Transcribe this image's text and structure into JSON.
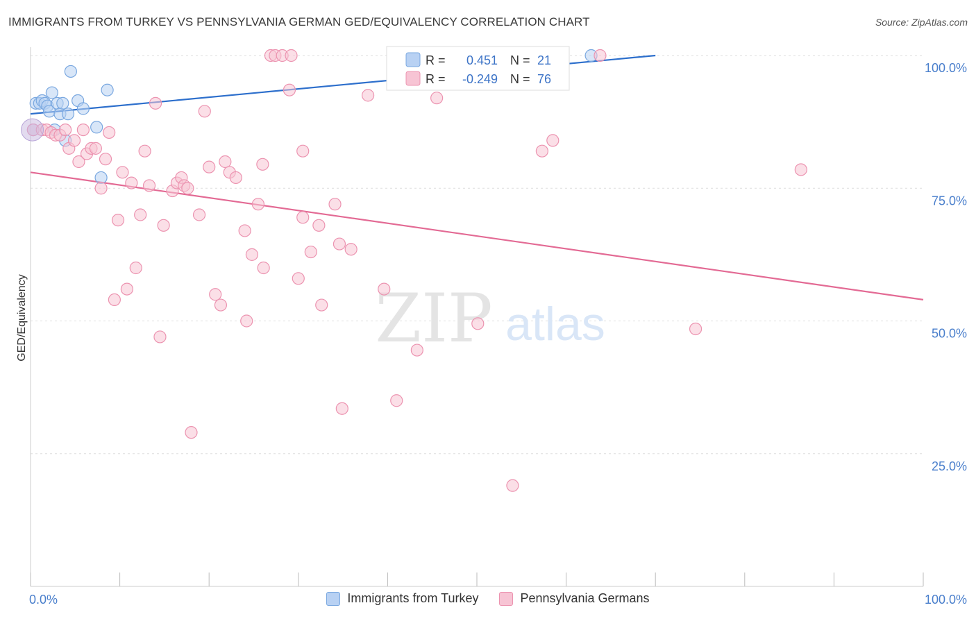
{
  "title": "IMMIGRANTS FROM TURKEY VS PENNSYLVANIA GERMAN GED/EQUIVALENCY CORRELATION CHART",
  "source": "Source: ZipAtlas.com",
  "watermark": {
    "zip": "ZIP",
    "atlas": "atlas"
  },
  "colors": {
    "blue_fill": "#b8d1f3",
    "blue_stroke": "#7aa8e0",
    "blue_line": "#2d6fcc",
    "pink_fill": "#f7c4d4",
    "pink_stroke": "#ec93b0",
    "pink_line": "#e36a94",
    "axis_label": "#4a7fcc",
    "grid": "#dddddd"
  },
  "stats_legend": {
    "rows": [
      {
        "r_label": "R =",
        "r_value": "0.451",
        "n_label": "N =",
        "n_value": "21",
        "series": "blue"
      },
      {
        "r_label": "R =",
        "r_value": "-0.249",
        "n_label": "N =",
        "n_value": "76",
        "series": "pink"
      }
    ]
  },
  "chart_data": {
    "type": "scatter",
    "xlabel": "",
    "ylabel": "GED/Equivalency",
    "xlim": [
      0,
      100
    ],
    "ylim": [
      0,
      100
    ],
    "x_tick_labels": [
      "0.0%",
      "100.0%"
    ],
    "y_tick_labels": [
      {
        "value": 100,
        "label": "100.0%"
      },
      {
        "value": 75,
        "label": "75.0%"
      },
      {
        "value": 50,
        "label": "50.0%"
      },
      {
        "value": 25,
        "label": "25.0%"
      }
    ],
    "grid": true,
    "series": [
      {
        "name": "Immigrants from Turkey",
        "color": "blue",
        "points": [
          [
            0.3,
            86
          ],
          [
            0.6,
            91
          ],
          [
            1.0,
            91
          ],
          [
            1.3,
            91.5
          ],
          [
            1.6,
            91
          ],
          [
            1.9,
            90.5
          ],
          [
            2.1,
            89.5
          ],
          [
            2.4,
            93
          ],
          [
            2.7,
            86
          ],
          [
            3.0,
            91
          ],
          [
            3.3,
            89
          ],
          [
            3.6,
            91
          ],
          [
            3.9,
            84
          ],
          [
            4.2,
            89
          ],
          [
            4.5,
            97
          ],
          [
            5.3,
            91.5
          ],
          [
            5.9,
            90
          ],
          [
            7.4,
            86.5
          ],
          [
            7.9,
            77
          ],
          [
            8.6,
            93.5
          ],
          [
            62.8,
            100
          ]
        ],
        "trend": {
          "x0": 0,
          "y0": 89,
          "x1": 70,
          "y1": 100
        }
      },
      {
        "name": "Pennsylvania Germans",
        "color": "pink",
        "points": [
          [
            0.3,
            86
          ],
          [
            1.3,
            86
          ],
          [
            1.8,
            86
          ],
          [
            2.3,
            85.5
          ],
          [
            2.8,
            85
          ],
          [
            3.3,
            85
          ],
          [
            3.9,
            86
          ],
          [
            4.3,
            82.5
          ],
          [
            4.9,
            84
          ],
          [
            5.4,
            80
          ],
          [
            5.9,
            86
          ],
          [
            6.3,
            81.5
          ],
          [
            6.8,
            82.5
          ],
          [
            7.3,
            82.5
          ],
          [
            7.9,
            75
          ],
          [
            8.4,
            80.5
          ],
          [
            8.8,
            85.5
          ],
          [
            9.4,
            54
          ],
          [
            9.8,
            69
          ],
          [
            10.3,
            78
          ],
          [
            10.8,
            56
          ],
          [
            11.3,
            76
          ],
          [
            11.8,
            60
          ],
          [
            12.3,
            70
          ],
          [
            12.8,
            82
          ],
          [
            13.3,
            75.5
          ],
          [
            14.0,
            91
          ],
          [
            14.5,
            47
          ],
          [
            14.9,
            68
          ],
          [
            15.9,
            74.5
          ],
          [
            16.4,
            76
          ],
          [
            16.9,
            77
          ],
          [
            17.2,
            75.5
          ],
          [
            17.6,
            75
          ],
          [
            18.0,
            29
          ],
          [
            18.9,
            70
          ],
          [
            19.5,
            89.5
          ],
          [
            20.0,
            79
          ],
          [
            20.7,
            55
          ],
          [
            21.3,
            53
          ],
          [
            21.8,
            80
          ],
          [
            22.3,
            78
          ],
          [
            23.0,
            77
          ],
          [
            24.0,
            67
          ],
          [
            24.2,
            50
          ],
          [
            24.8,
            62.5
          ],
          [
            25.5,
            72
          ],
          [
            26.1,
            60
          ],
          [
            26.0,
            79.5
          ],
          [
            26.9,
            100
          ],
          [
            27.4,
            100
          ],
          [
            28.2,
            100
          ],
          [
            29.0,
            93.5
          ],
          [
            29.2,
            100
          ],
          [
            30.0,
            58
          ],
          [
            30.5,
            82
          ],
          [
            30.5,
            69.5
          ],
          [
            31.4,
            63
          ],
          [
            32.3,
            68
          ],
          [
            32.6,
            53
          ],
          [
            34.1,
            72
          ],
          [
            34.6,
            64.5
          ],
          [
            35.9,
            63.5
          ],
          [
            37.8,
            92.5
          ],
          [
            39.6,
            56
          ],
          [
            41.0,
            35
          ],
          [
            43.3,
            44.5
          ],
          [
            45.5,
            92
          ],
          [
            50.1,
            49.5
          ],
          [
            54.0,
            19
          ],
          [
            57.3,
            82
          ],
          [
            58.5,
            84
          ],
          [
            63.8,
            100
          ],
          [
            74.5,
            48.5
          ],
          [
            86.3,
            78.5
          ],
          [
            34.9,
            33.5
          ]
        ],
        "trend": {
          "x0": 0,
          "y0": 78,
          "x1": 100,
          "y1": 54
        }
      }
    ]
  }
}
